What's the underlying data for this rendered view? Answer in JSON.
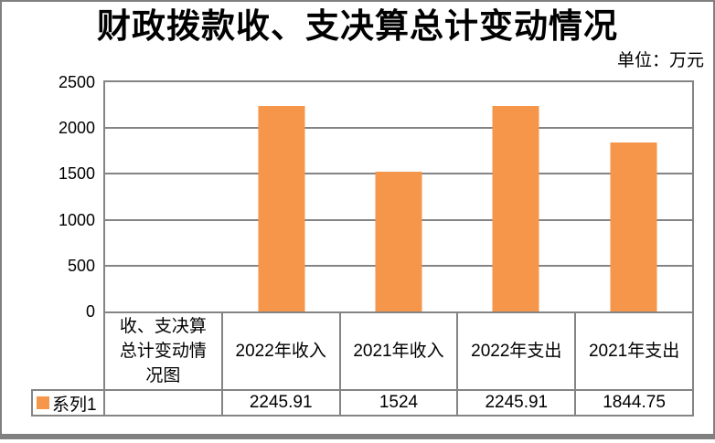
{
  "title": "财政拨款收、支决算总计变动情况",
  "unit_label": "单位：万元",
  "legend": {
    "label": "系列1"
  },
  "colors": {
    "bar": "#F6964A",
    "grid": "#848484",
    "frame": "#808080",
    "text": "#000000",
    "background": "#FFFFFF"
  },
  "chart_data": {
    "type": "bar",
    "title": "财政拨款收、支决算总计变动情况",
    "unit": "万元",
    "categories": [
      "收、支决算总计变动情况图",
      "2022年收入",
      "2021年收入",
      "2022年支出",
      "2021年支出"
    ],
    "series": [
      {
        "name": "系列1",
        "values": [
          null,
          2245.91,
          1524,
          2245.91,
          1844.75
        ]
      }
    ],
    "ylim": [
      0,
      2500
    ],
    "yticks": [
      0,
      500,
      1000,
      1500,
      2000,
      2500
    ],
    "grid": true,
    "bar_color": "#F6964A",
    "legend_position": "data-table-row-header",
    "data_table": {
      "corner_label": "收、支决算\n总计变动情\n况图",
      "column_headers": [
        "2022年收入",
        "2021年收入",
        "2022年支出",
        "2021年支出"
      ],
      "row_label": "系列1",
      "display_values": [
        "",
        "2245.91",
        "1524",
        "2245.91",
        "1844.75"
      ]
    }
  }
}
